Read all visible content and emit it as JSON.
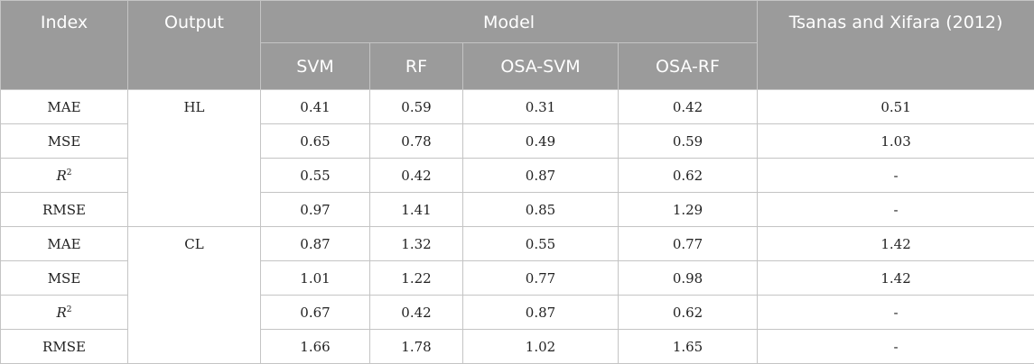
{
  "header": {
    "index": "Index",
    "output": "Output",
    "model": "Model",
    "reference": "Tsanas and Xifara (2012)",
    "models": [
      "SVM",
      "RF",
      "OSA-SVM",
      "OSA-RF"
    ]
  },
  "groups": [
    {
      "output": "HL",
      "rows": [
        {
          "index": "MAE",
          "values": [
            "0.41",
            "0.59",
            "0.31",
            "0.42"
          ],
          "reference": "0.51"
        },
        {
          "index": "MSE",
          "values": [
            "0.65",
            "0.78",
            "0.49",
            "0.59"
          ],
          "reference": "1.03"
        },
        {
          "index": "R",
          "index_sup": "2",
          "values": [
            "0.55",
            "0.42",
            "0.87",
            "0.62"
          ],
          "reference": "-"
        },
        {
          "index": "RMSE",
          "values": [
            "0.97",
            "1.41",
            "0.85",
            "1.29"
          ],
          "reference": "-"
        }
      ]
    },
    {
      "output": "CL",
      "rows": [
        {
          "index": "MAE",
          "values": [
            "0.87",
            "1.32",
            "0.55",
            "0.77"
          ],
          "reference": "1.42"
        },
        {
          "index": "MSE",
          "values": [
            "1.01",
            "1.22",
            "0.77",
            "0.98"
          ],
          "reference": "1.42"
        },
        {
          "index": "R",
          "index_sup": "2",
          "values": [
            "0.67",
            "0.42",
            "0.87",
            "0.62"
          ],
          "reference": "-"
        },
        {
          "index": "RMSE",
          "values": [
            "1.66",
            "1.78",
            "1.02",
            "1.65"
          ],
          "reference": "-"
        }
      ]
    }
  ]
}
